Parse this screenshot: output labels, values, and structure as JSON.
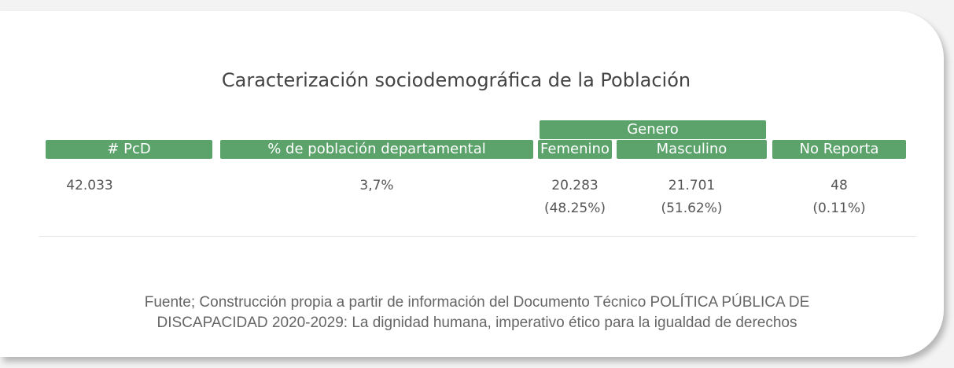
{
  "title": "Caracterización sociodemográfica de la Población",
  "table": {
    "group_header": "Genero",
    "headers": [
      "# PcD",
      "% de población departamental",
      "Femenino",
      "Masculino",
      "No Reporta"
    ],
    "rows": [
      [
        [
          "42.033"
        ],
        [
          "3,7%"
        ],
        [
          "20.283",
          "(48.25%)"
        ],
        [
          "21.701",
          "(51.62%)"
        ],
        [
          "48",
          "(0.11%)"
        ]
      ]
    ]
  },
  "footer": [
    "Fuente; Construcción propia a partir de información del Documento Técnico POLÍTICA PÚBLICA DE",
    "DISCAPACIDAD 2020-2029: La dignidad humana, imperativo ético para la igualdad de derechos"
  ]
}
